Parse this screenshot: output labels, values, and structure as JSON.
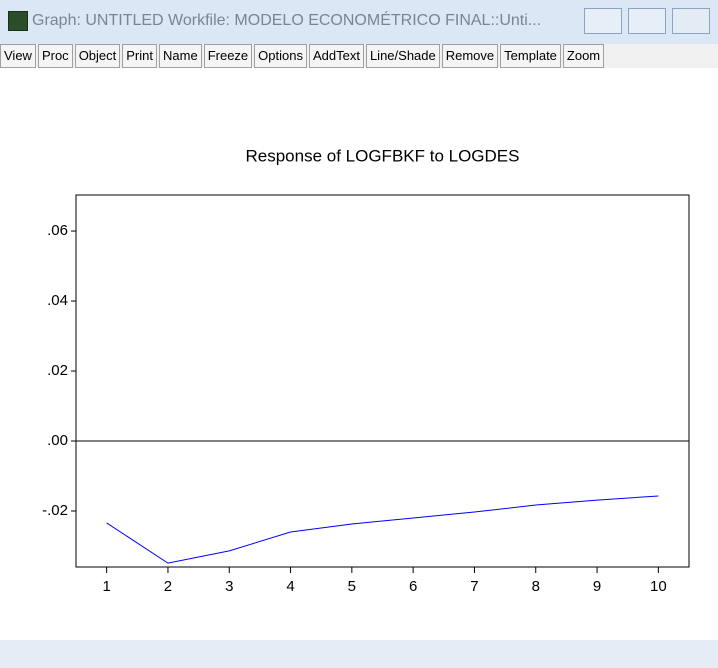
{
  "window": {
    "title": "Graph: UNTITLED   Workfile: MODELO ECONOMÉTRICO FINAL::Unti...",
    "toolbar": [
      "View",
      "Proc",
      "Object",
      "Print",
      "Name",
      "Freeze",
      "Options",
      "AddText",
      "Line/Shade",
      "Remove",
      "Template",
      "Zoom"
    ]
  },
  "chart_data": {
    "type": "line",
    "title": "Response of LOGFBKF to LOGDES",
    "x": [
      1,
      2,
      3,
      4,
      5,
      6,
      7,
      8,
      9,
      10
    ],
    "series": [
      {
        "color": "#0000ff",
        "values": [
          -0.0234,
          -0.0349,
          -0.0314,
          -0.026,
          -0.0237,
          -0.022,
          -0.0203,
          -0.0183,
          -0.0169,
          -0.0157
        ]
      }
    ],
    "xlim": [
      0.5,
      10.5
    ],
    "xticks": [
      1,
      2,
      3,
      4,
      5,
      6,
      7,
      8,
      9,
      10
    ],
    "ylim": [
      -0.036,
      0.0703
    ],
    "yticks": [
      {
        "value": -0.02,
        "label": "-.02"
      },
      {
        "value": 0,
        "label": ".00"
      },
      {
        "value": 0.02,
        "label": ".02"
      },
      {
        "value": 0.04,
        "label": ".04"
      },
      {
        "value": 0.06,
        "label": ".06"
      }
    ],
    "zero_line": true
  }
}
